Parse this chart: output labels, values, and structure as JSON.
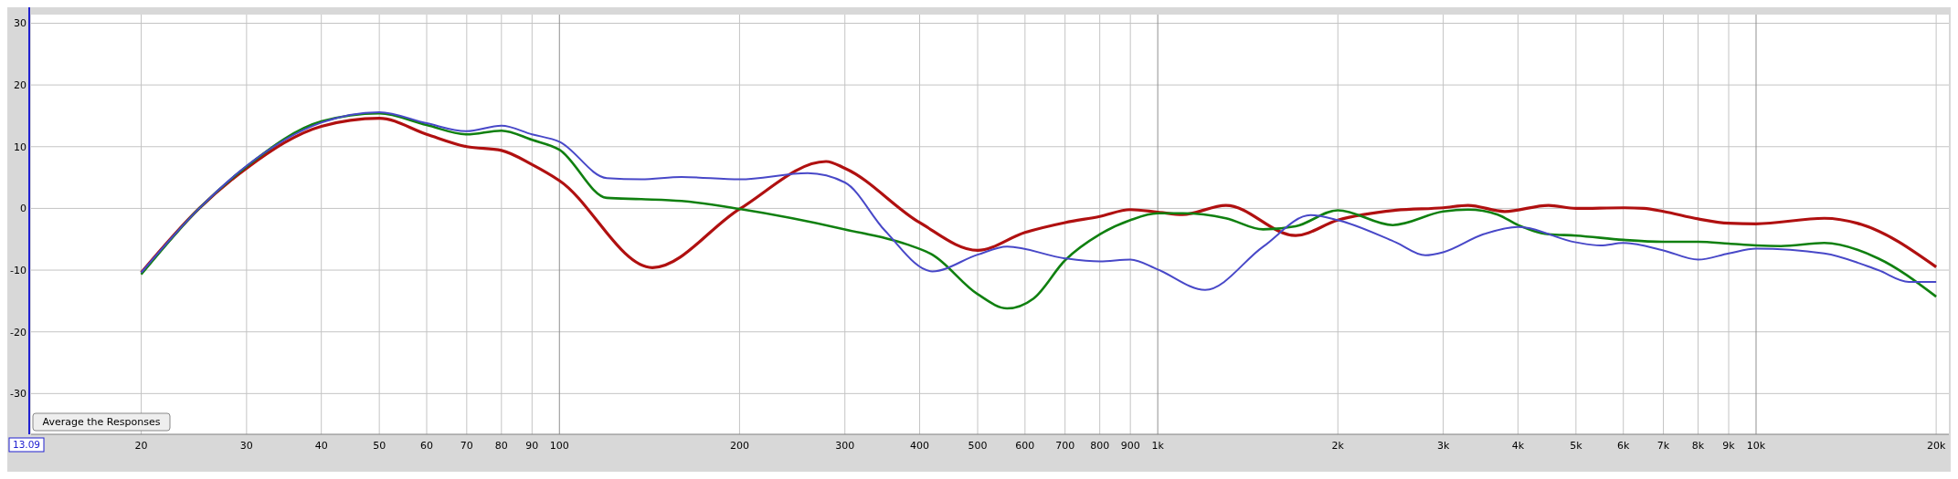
{
  "chart_data": {
    "type": "line",
    "log": "x",
    "grid": true,
    "line_style": "solid",
    "marker": "none",
    "xlim": [
      13.09,
      21000
    ],
    "ylim": [
      -36.6,
      31.4
    ],
    "xticks": [
      20,
      30,
      40,
      50,
      60,
      70,
      80,
      90,
      100,
      200,
      300,
      400,
      500,
      600,
      700,
      800,
      900,
      {
        "value": 1000,
        "label": "1k"
      },
      {
        "value": 2000,
        "label": "2k"
      },
      {
        "value": 3000,
        "label": "3k"
      },
      {
        "value": 4000,
        "label": "4k"
      },
      {
        "value": 5000,
        "label": "5k"
      },
      {
        "value": 6000,
        "label": "6k"
      },
      {
        "value": 7000,
        "label": "7k"
      },
      {
        "value": 8000,
        "label": "8k"
      },
      {
        "value": 9000,
        "label": "9k"
      },
      {
        "value": 10000,
        "label": "10k"
      },
      {
        "value": 20000,
        "label": "20k"
      }
    ],
    "yticks": [
      -30,
      -20,
      -10,
      0,
      10,
      20,
      30
    ],
    "annotations": [
      "13.09",
      "Average the Responses"
    ],
    "series": [
      {
        "color": "#b01010",
        "x": [
          20,
          25,
          30,
          40,
          50,
          60,
          70,
          80,
          90,
          100,
          143,
          200,
          279,
          300,
          400,
          500,
          600,
          700,
          800,
          900,
          1000,
          1100,
          1300,
          1700,
          2000,
          2500,
          3000,
          3300,
          3800,
          4500,
          5000,
          6000,
          6500,
          7000,
          8000,
          9000,
          10000,
          13000,
          15000,
          20000
        ],
        "values": [
          -10.4,
          0,
          6.5,
          13.3,
          14.6,
          12,
          10,
          9.4,
          7.1,
          4.5,
          -9.6,
          -0.1,
          7.6,
          6.5,
          -2.3,
          -6.8,
          -3.9,
          -2.3,
          -1.3,
          -0.2,
          -0.6,
          -1,
          0.5,
          -4.4,
          -1.9,
          -0.3,
          0.1,
          0.5,
          -0.5,
          0.5,
          0,
          0.1,
          0,
          -0.5,
          -1.7,
          -2.4,
          -2.5,
          -1.6,
          -2.6,
          -9.5
        ]
      },
      {
        "color": "#108010",
        "x": [
          20,
          25,
          30,
          40,
          50,
          60,
          70,
          80,
          90,
          100,
          120,
          137,
          160,
          200,
          300,
          380,
          420,
          500,
          560,
          620,
          700,
          800,
          900,
          1000,
          1100,
          1300,
          1500,
          1700,
          2000,
          2470,
          3000,
          3300,
          3700,
          4000,
          4500,
          5000,
          6000,
          7000,
          8000,
          9000,
          10000,
          11000,
          13000,
          16000,
          20000
        ],
        "values": [
          -10.7,
          0,
          6.8,
          14.1,
          15.4,
          13.5,
          12,
          12.6,
          11.1,
          9.5,
          1.7,
          1.5,
          1.2,
          -0.1,
          -3.4,
          -5.8,
          -7.5,
          -13.9,
          -16.2,
          -14.6,
          -8.4,
          -4.2,
          -1.9,
          -0.8,
          -0.8,
          -1.6,
          -3.4,
          -2.9,
          -0.3,
          -2.7,
          -0.5,
          -0.2,
          -1,
          -2.7,
          -4.2,
          -4.4,
          -5.1,
          -5.4,
          -5.4,
          -5.7,
          -6,
          -6.1,
          -5.6,
          -8.1,
          -14.3
        ]
      },
      {
        "color": "#4848c8",
        "x": [
          20,
          25,
          30,
          40,
          50,
          60,
          70,
          80,
          90,
          100,
          120,
          137,
          160,
          200,
          260,
          300,
          350,
          420,
          500,
          560,
          700,
          800,
          900,
          1000,
          1200,
          1500,
          1800,
          2000,
          2500,
          2800,
          3000,
          3500,
          4000,
          5000,
          5500,
          6000,
          7000,
          8000,
          9000,
          10000,
          13000,
          16000,
          18000,
          20000
        ],
        "values": [
          -10.4,
          0,
          6.9,
          13.9,
          15.6,
          13.8,
          12.5,
          13.4,
          12,
          10.8,
          4.9,
          4.7,
          5.1,
          4.7,
          5.7,
          4.2,
          -3.6,
          -10.2,
          -7.5,
          -6.2,
          -8.1,
          -8.6,
          -8.3,
          -9.9,
          -13.2,
          -6.2,
          -1.1,
          -1.9,
          -5.5,
          -7.6,
          -7.1,
          -4.2,
          -3,
          -5.5,
          -6,
          -5.6,
          -6.8,
          -8.3,
          -7.3,
          -6.5,
          -7.3,
          -10,
          -11.9,
          -11.9
        ]
      }
    ]
  }
}
